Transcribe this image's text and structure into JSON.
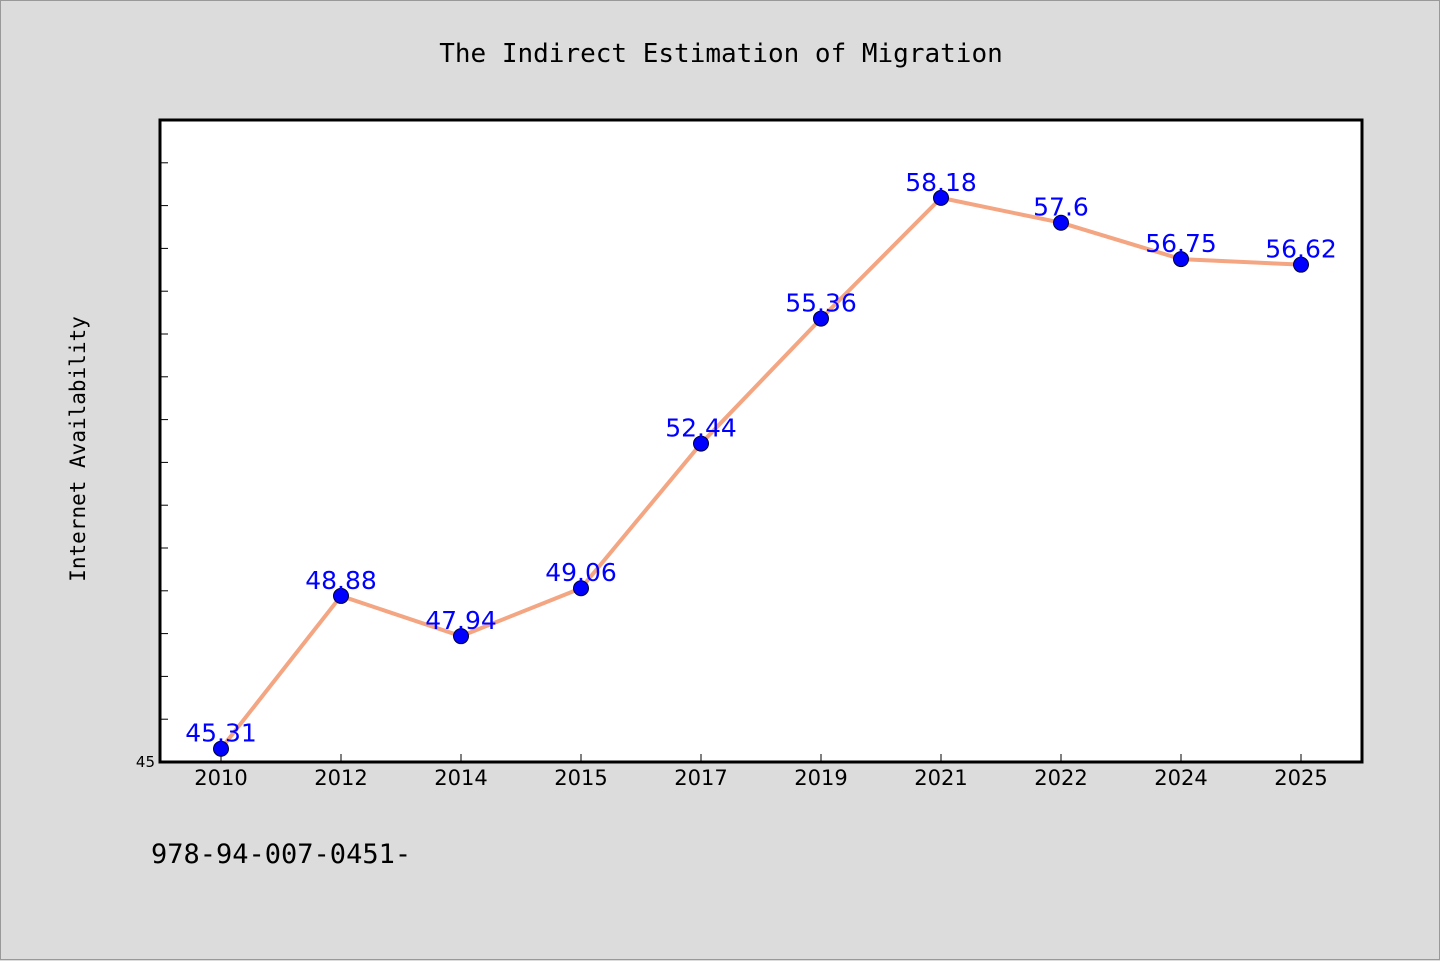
{
  "chart_data": {
    "type": "line",
    "title": "The Indirect Estimation of Migration",
    "xlabel": "",
    "ylabel": "Internet Availability",
    "categories": [
      "2010",
      "2012",
      "2014",
      "2015",
      "2017",
      "2019",
      "2021",
      "2022",
      "2024",
      "2025"
    ],
    "series": [
      {
        "values": [
          45.31,
          48.88,
          47.94,
          49.06,
          52.44,
          55.36,
          58.18,
          57.6,
          56.75,
          56.62
        ]
      }
    ],
    "data_labels": [
      "45.31",
      "48.88",
      "47.94",
      "49.06",
      "52.44",
      "55.36",
      "58.18",
      "57.6",
      "56.75",
      "56.62"
    ],
    "ylim": [
      45,
      60
    ],
    "y_tick_labels": [
      "45"
    ],
    "y_minor_tick_step": 1,
    "grid": false,
    "line_color": "#f4a582",
    "marker_color": "#0000ff",
    "label_color": "#0000ff",
    "plot_background": "#ffffff",
    "figure_background": "#dcdcdc"
  },
  "footer_text": "978-94-007-0451-"
}
